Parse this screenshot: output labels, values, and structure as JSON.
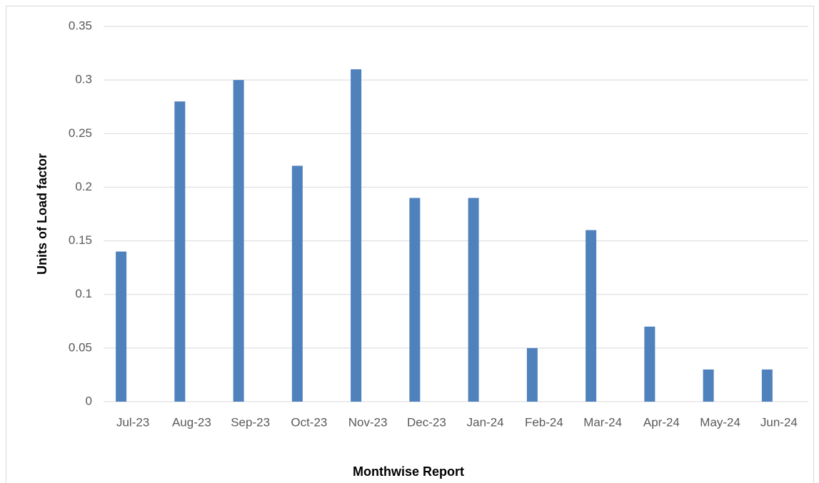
{
  "chart_data": {
    "type": "bar",
    "x_label": "Monthwise Report",
    "y_label": "Units of Load factor",
    "categories": [
      "Jul-23",
      "Aug-23",
      "Sep-23",
      "Oct-23",
      "Nov-23",
      "Dec-23",
      "Jan-24",
      "Feb-24",
      "Mar-24",
      "Apr-24",
      "May-24",
      "Jun-24"
    ],
    "values": [
      0.14,
      0.28,
      0.3,
      0.22,
      0.31,
      0.19,
      0.19,
      0.05,
      0.16,
      0.07,
      0.03,
      0.03
    ],
    "color": "#4f81bd",
    "ylim": [
      0,
      0.35
    ],
    "yticks": [
      0,
      0.05,
      0.1,
      0.15,
      0.2,
      0.25,
      0.3,
      0.35
    ],
    "grid": true
  }
}
